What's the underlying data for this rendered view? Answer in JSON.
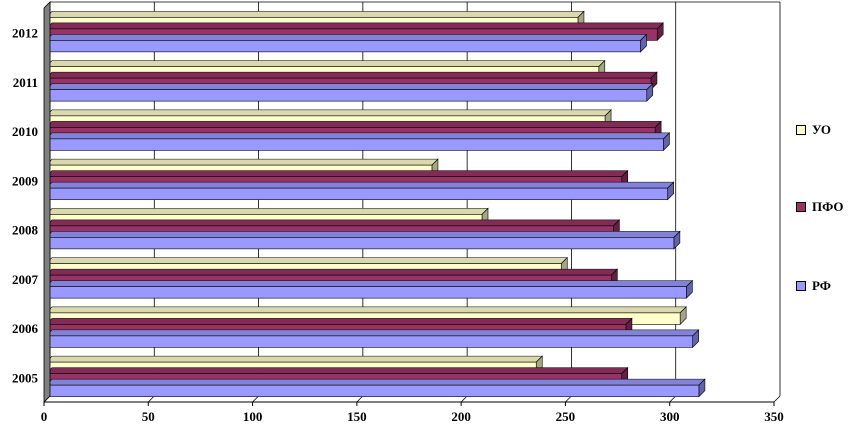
{
  "chart_data": {
    "type": "bar",
    "orientation": "horizontal",
    "categories": [
      "2005",
      "2006",
      "2007",
      "2008",
      "2009",
      "2010",
      "2011",
      "2012"
    ],
    "series": [
      {
        "name": "УО",
        "color": "#FFFFCC",
        "values": [
          236,
          305,
          248,
          210,
          186,
          269,
          266,
          256
        ]
      },
      {
        "name": "ПФО",
        "color": "#993366",
        "values": [
          277,
          279,
          272,
          273,
          277,
          293,
          291,
          294
        ]
      },
      {
        "name": "РФ",
        "color": "#9999FF",
        "values": [
          314,
          311,
          308,
          302,
          299,
          297,
          289,
          286
        ]
      }
    ],
    "xlim": [
      0,
      350
    ],
    "xticks": [
      "0",
      "50",
      "100",
      "150",
      "200",
      "250",
      "300",
      "350"
    ],
    "grid": true,
    "legend_position": "right"
  }
}
